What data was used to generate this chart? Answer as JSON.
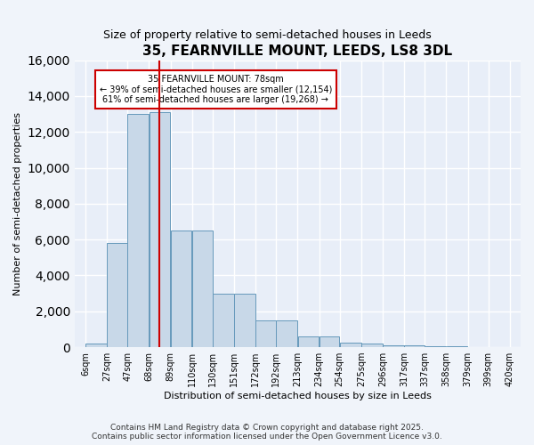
{
  "title": "35, FEARNVILLE MOUNT, LEEDS, LS8 3DL",
  "subtitle": "Size of property relative to semi-detached houses in Leeds",
  "xlabel": "Distribution of semi-detached houses by size in Leeds",
  "ylabel": "Number of semi-detached properties",
  "bin_labels": [
    "6sqm",
    "27sqm",
    "47sqm",
    "68sqm",
    "89sqm",
    "110sqm",
    "130sqm",
    "151sqm",
    "172sqm",
    "192sqm",
    "213sqm",
    "234sqm",
    "254sqm",
    "275sqm",
    "296sqm",
    "317sqm",
    "337sqm",
    "358sqm",
    "379sqm",
    "399sqm",
    "420sqm"
  ],
  "bin_edges": [
    6,
    27,
    47,
    68,
    89,
    110,
    130,
    151,
    172,
    192,
    213,
    234,
    254,
    275,
    296,
    317,
    337,
    358,
    379,
    399,
    420
  ],
  "bar_values": [
    200,
    5800,
    13000,
    13100,
    6500,
    6500,
    3000,
    3000,
    1500,
    1500,
    600,
    600,
    250,
    200,
    100,
    100,
    50,
    50,
    10,
    5,
    0
  ],
  "bar_color": "#c8d8e8",
  "bar_edge_color": "#6699bb",
  "bg_color": "#e8eef8",
  "grid_color": "#ffffff",
  "property_size": 78,
  "property_label": "35 FEARNVILLE MOUNT: 78sqm",
  "pct_smaller": 39,
  "pct_larger": 61,
  "count_smaller": 12154,
  "count_larger": 19268,
  "vline_color": "#cc0000",
  "annotation_box_color": "#cc0000",
  "ylim": [
    0,
    16000
  ],
  "yticks": [
    0,
    2000,
    4000,
    6000,
    8000,
    10000,
    12000,
    14000,
    16000
  ],
  "footer_line1": "Contains HM Land Registry data © Crown copyright and database right 2025.",
  "footer_line2": "Contains public sector information licensed under the Open Government Licence v3.0."
}
